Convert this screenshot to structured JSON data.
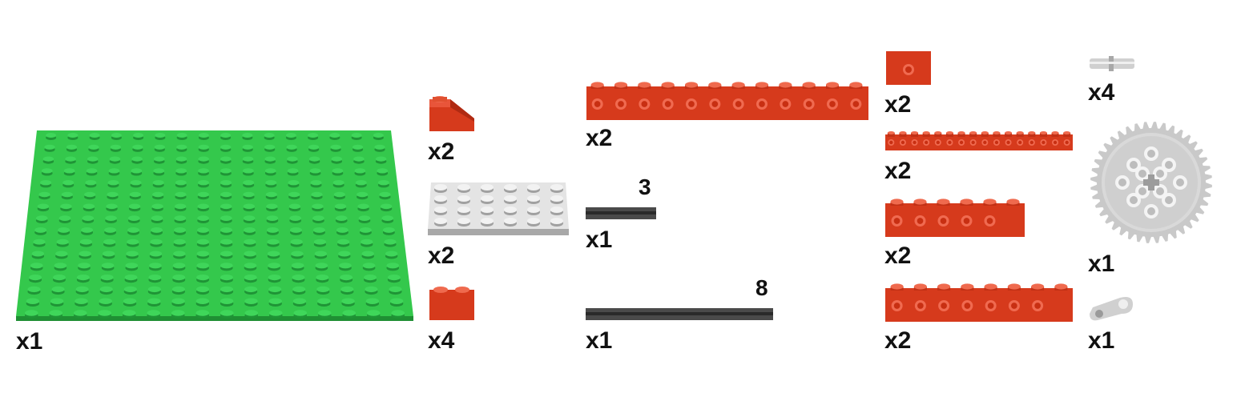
{
  "title": "",
  "colors": {
    "green_plate": "#32c84a",
    "red_brick": "#d93a1c",
    "light_gray": "#d8d8d8",
    "dark_gray_axle": "#4a4a4a"
  },
  "parts": [
    {
      "id": "green-plate",
      "icon": "green-baseplate-16x16",
      "qty": "x1"
    },
    {
      "id": "red-slope",
      "icon": "red-slope-1x2",
      "qty": "x2"
    },
    {
      "id": "gray-plate",
      "icon": "light-gray-plate-4x6",
      "qty": "x2"
    },
    {
      "id": "red-brick-1x2",
      "icon": "red-brick-1x2",
      "qty": "x4"
    },
    {
      "id": "technic-beam-12",
      "icon": "red-technic-brick-1x12",
      "qty": "x2"
    },
    {
      "id": "axle-3",
      "icon": "dark-gray-axle",
      "qty": "x1",
      "length": "3"
    },
    {
      "id": "axle-8",
      "icon": "dark-gray-axle",
      "qty": "x1",
      "length": "8"
    },
    {
      "id": "technic-brick-1x2",
      "icon": "red-technic-brick-1x2",
      "qty": "x2"
    },
    {
      "id": "technic-plate-16",
      "icon": "red-technic-plate-1x16",
      "qty": "x2"
    },
    {
      "id": "technic-brick-1x6",
      "icon": "red-technic-brick-1x6",
      "qty": "x2"
    },
    {
      "id": "technic-brick-1x8",
      "icon": "red-technic-brick-1x8",
      "qty": "x2"
    },
    {
      "id": "pin",
      "icon": "light-gray-connector-pin",
      "qty": "x4"
    },
    {
      "id": "gear-40",
      "icon": "light-gray-gear-40-tooth",
      "qty": "x1"
    },
    {
      "id": "crank",
      "icon": "light-gray-crank",
      "qty": "x1"
    }
  ]
}
